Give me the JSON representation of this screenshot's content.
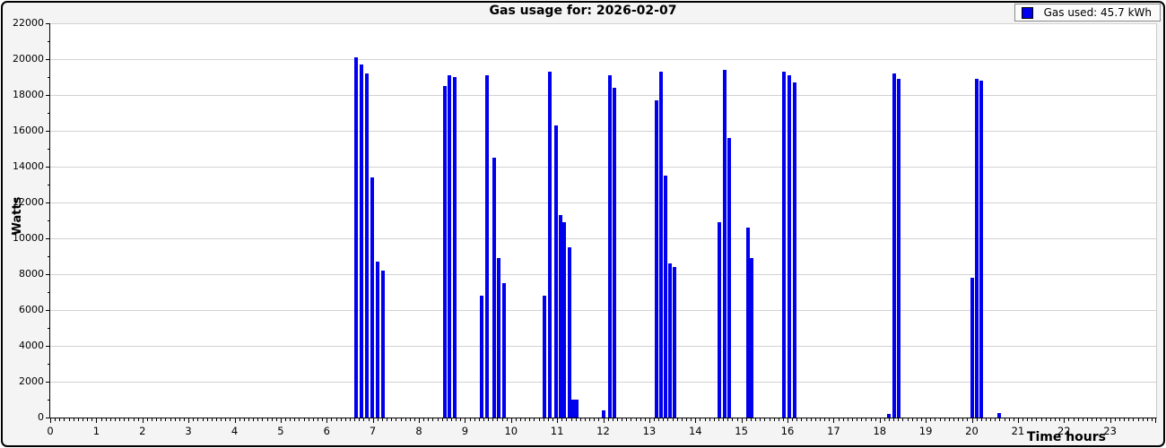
{
  "colors": {
    "bar": "#0000ee",
    "grid": "#d2d2d2",
    "plot_background": "#ffffff",
    "outer_background": "#f4f4f4",
    "axis": "#000000"
  },
  "chart_data": {
    "type": "bar",
    "title": "Gas usage for: 2026-02-07",
    "xlabel": "Time hours",
    "ylabel": "Watts",
    "legend_label": "Gas used: 45.7 kWh",
    "legend_position": "top-right",
    "grid": "horizontal-only",
    "xlim": [
      0,
      24
    ],
    "ylim": [
      0,
      22000
    ],
    "x_tick_labels": [
      "0",
      "1",
      "2",
      "3",
      "4",
      "5",
      "6",
      "7",
      "8",
      "9",
      "10",
      "11",
      "12",
      "13",
      "14",
      "15",
      "16",
      "17",
      "18",
      "19",
      "20",
      "21",
      "22",
      "23"
    ],
    "x_minor_step": 0.1,
    "y_tick_step": 2000,
    "y_minor_step": 1000,
    "y_tick_labels": [
      "0",
      "2000",
      "4000",
      "6000",
      "8000",
      "10000",
      "12000",
      "14000",
      "16000",
      "18000",
      "20000",
      "22000"
    ],
    "bars": [
      {
        "hour": 6.64,
        "watts": 20100
      },
      {
        "hour": 6.76,
        "watts": 19700
      },
      {
        "hour": 6.87,
        "watts": 19200
      },
      {
        "hour": 6.99,
        "watts": 13400
      },
      {
        "hour": 7.11,
        "watts": 8700
      },
      {
        "hour": 7.23,
        "watts": 8200
      },
      {
        "hour": 8.57,
        "watts": 18500
      },
      {
        "hour": 8.67,
        "watts": 19100
      },
      {
        "hour": 8.78,
        "watts": 19000
      },
      {
        "hour": 9.37,
        "watts": 6800
      },
      {
        "hour": 9.47,
        "watts": 19100
      },
      {
        "hour": 9.64,
        "watts": 14500
      },
      {
        "hour": 9.74,
        "watts": 8900
      },
      {
        "hour": 9.84,
        "watts": 7500
      },
      {
        "hour": 10.73,
        "watts": 6800
      },
      {
        "hour": 10.85,
        "watts": 19300
      },
      {
        "hour": 10.98,
        "watts": 16300
      },
      {
        "hour": 11.07,
        "watts": 11300
      },
      {
        "hour": 11.16,
        "watts": 10900
      },
      {
        "hour": 11.26,
        "watts": 9500
      },
      {
        "hour": 11.34,
        "watts": 1000
      },
      {
        "hour": 11.43,
        "watts": 1000
      },
      {
        "hour": 12.0,
        "watts": 400
      },
      {
        "hour": 12.15,
        "watts": 19100
      },
      {
        "hour": 12.25,
        "watts": 18400
      },
      {
        "hour": 13.15,
        "watts": 17700
      },
      {
        "hour": 13.26,
        "watts": 19300
      },
      {
        "hour": 13.35,
        "watts": 13500
      },
      {
        "hour": 13.44,
        "watts": 8600
      },
      {
        "hour": 13.54,
        "watts": 8400
      },
      {
        "hour": 14.51,
        "watts": 10900
      },
      {
        "hour": 14.63,
        "watts": 19400
      },
      {
        "hour": 14.73,
        "watts": 15600
      },
      {
        "hour": 15.14,
        "watts": 10600
      },
      {
        "hour": 15.23,
        "watts": 8900
      },
      {
        "hour": 15.93,
        "watts": 19300
      },
      {
        "hour": 16.04,
        "watts": 19100
      },
      {
        "hour": 16.15,
        "watts": 18700
      },
      {
        "hour": 18.19,
        "watts": 200
      },
      {
        "hour": 18.31,
        "watts": 19200
      },
      {
        "hour": 18.42,
        "watts": 18900
      },
      {
        "hour": 20.0,
        "watts": 7800
      },
      {
        "hour": 20.1,
        "watts": 18900
      },
      {
        "hour": 20.2,
        "watts": 18800
      },
      {
        "hour": 20.6,
        "watts": 250
      }
    ]
  }
}
